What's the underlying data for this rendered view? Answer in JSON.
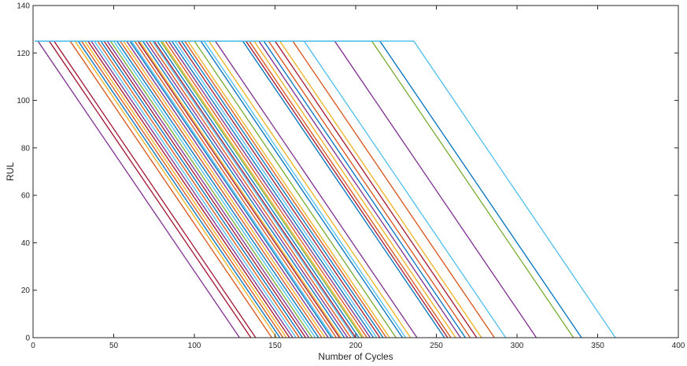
{
  "chart_data": {
    "type": "line",
    "title": "",
    "xlabel": "Number of Cycles",
    "ylabel": "RUL",
    "xlim": [
      0,
      400
    ],
    "ylim": [
      0,
      140
    ],
    "xticks": [
      0,
      50,
      100,
      150,
      200,
      250,
      300,
      350,
      400
    ],
    "yticks": [
      0,
      20,
      40,
      60,
      80,
      100,
      120,
      140
    ],
    "grid": false,
    "legend": "none",
    "rul_cap": 125,
    "series_note_colors": [
      "#0072BD",
      "#D95319",
      "#EDB120",
      "#7E2F8E",
      "#77AC30",
      "#4DBEEE",
      "#A2142F"
    ],
    "series": [
      {
        "color": "#7E2F8E",
        "x": [
          1,
          3,
          128
        ],
        "y": [
          125,
          125,
          0
        ]
      },
      {
        "color": "#A2142F",
        "x": [
          1,
          10,
          135
        ],
        "y": [
          125,
          125,
          0
        ]
      },
      {
        "color": "#A2142F",
        "x": [
          1,
          13,
          138
        ],
        "y": [
          125,
          125,
          0
        ]
      },
      {
        "color": "#D95319",
        "x": [
          1,
          23,
          148
        ],
        "y": [
          125,
          125,
          0
        ]
      },
      {
        "color": "#EDB120",
        "x": [
          1,
          26,
          151
        ],
        "y": [
          125,
          125,
          0
        ]
      },
      {
        "color": "#0072BD",
        "x": [
          1,
          28,
          153
        ],
        "y": [
          125,
          125,
          0
        ]
      },
      {
        "color": "#D95319",
        "x": [
          1,
          30,
          155
        ],
        "y": [
          125,
          125,
          0
        ]
      },
      {
        "color": "#EDB120",
        "x": [
          1,
          32,
          157
        ],
        "y": [
          125,
          125,
          0
        ]
      },
      {
        "color": "#A2142F",
        "x": [
          1,
          34,
          159
        ],
        "y": [
          125,
          125,
          0
        ]
      },
      {
        "color": "#7E2F8E",
        "x": [
          1,
          36,
          161
        ],
        "y": [
          125,
          125,
          0
        ]
      },
      {
        "color": "#4DBEEE",
        "x": [
          1,
          38,
          163
        ],
        "y": [
          125,
          125,
          0
        ]
      },
      {
        "color": "#D95319",
        "x": [
          1,
          40,
          165
        ],
        "y": [
          125,
          125,
          0
        ]
      },
      {
        "color": "#0072BD",
        "x": [
          1,
          42,
          167
        ],
        "y": [
          125,
          125,
          0
        ]
      },
      {
        "color": "#A2142F",
        "x": [
          1,
          44,
          169
        ],
        "y": [
          125,
          125,
          0
        ]
      },
      {
        "color": "#7E2F8E",
        "x": [
          1,
          46,
          171
        ],
        "y": [
          125,
          125,
          0
        ]
      },
      {
        "color": "#77AC30",
        "x": [
          1,
          48,
          173
        ],
        "y": [
          125,
          125,
          0
        ]
      },
      {
        "color": "#4DBEEE",
        "x": [
          1,
          50,
          175
        ],
        "y": [
          125,
          125,
          0
        ]
      },
      {
        "color": "#0072BD",
        "x": [
          1,
          52,
          177
        ],
        "y": [
          125,
          125,
          0
        ]
      },
      {
        "color": "#D95319",
        "x": [
          1,
          54,
          179
        ],
        "y": [
          125,
          125,
          0
        ]
      },
      {
        "color": "#EDB120",
        "x": [
          1,
          56,
          181
        ],
        "y": [
          125,
          125,
          0
        ]
      },
      {
        "color": "#7E2F8E",
        "x": [
          1,
          58,
          183
        ],
        "y": [
          125,
          125,
          0
        ]
      },
      {
        "color": "#0072BD",
        "x": [
          1,
          60,
          185
        ],
        "y": [
          125,
          125,
          0
        ]
      },
      {
        "color": "#4DBEEE",
        "x": [
          1,
          61,
          186
        ],
        "y": [
          125,
          125,
          0
        ]
      },
      {
        "color": "#D95319",
        "x": [
          1,
          63,
          188
        ],
        "y": [
          125,
          125,
          0
        ]
      },
      {
        "color": "#A2142F",
        "x": [
          1,
          65,
          190
        ],
        "y": [
          125,
          125,
          0
        ]
      },
      {
        "color": "#EDB120",
        "x": [
          1,
          66,
          191
        ],
        "y": [
          125,
          125,
          0
        ]
      },
      {
        "color": "#0072BD",
        "x": [
          1,
          68,
          193
        ],
        "y": [
          125,
          125,
          0
        ]
      },
      {
        "color": "#7E2F8E",
        "x": [
          1,
          70,
          195
        ],
        "y": [
          125,
          125,
          0
        ]
      },
      {
        "color": "#D95319",
        "x": [
          1,
          72,
          197
        ],
        "y": [
          125,
          125,
          0
        ]
      },
      {
        "color": "#4DBEEE",
        "x": [
          1,
          74,
          199
        ],
        "y": [
          125,
          125,
          0
        ]
      },
      {
        "color": "#A2142F",
        "x": [
          1,
          75,
          200
        ],
        "y": [
          125,
          125,
          0
        ]
      },
      {
        "color": "#0072BD",
        "x": [
          1,
          77,
          202
        ],
        "y": [
          125,
          125,
          0
        ]
      },
      {
        "color": "#77AC30",
        "x": [
          1,
          79,
          204
        ],
        "y": [
          125,
          125,
          0
        ]
      },
      {
        "color": "#EDB120",
        "x": [
          1,
          80,
          205
        ],
        "y": [
          125,
          125,
          0
        ]
      },
      {
        "color": "#D95319",
        "x": [
          1,
          82,
          207
        ],
        "y": [
          125,
          125,
          0
        ]
      },
      {
        "color": "#7E2F8E",
        "x": [
          1,
          84,
          209
        ],
        "y": [
          125,
          125,
          0
        ]
      },
      {
        "color": "#0072BD",
        "x": [
          1,
          86,
          211
        ],
        "y": [
          125,
          125,
          0
        ]
      },
      {
        "color": "#4DBEEE",
        "x": [
          1,
          88,
          213
        ],
        "y": [
          125,
          125,
          0
        ]
      },
      {
        "color": "#A2142F",
        "x": [
          1,
          90,
          215
        ],
        "y": [
          125,
          125,
          0
        ]
      },
      {
        "color": "#0072BD",
        "x": [
          1,
          92,
          217
        ],
        "y": [
          125,
          125,
          0
        ]
      },
      {
        "color": "#D95319",
        "x": [
          1,
          94,
          219
        ],
        "y": [
          125,
          125,
          0
        ]
      },
      {
        "color": "#EDB120",
        "x": [
          1,
          96,
          221
        ],
        "y": [
          125,
          125,
          0
        ]
      },
      {
        "color": "#77AC30",
        "x": [
          1,
          100,
          225
        ],
        "y": [
          125,
          125,
          0
        ]
      },
      {
        "color": "#0072BD",
        "x": [
          1,
          104,
          229
        ],
        "y": [
          125,
          125,
          0
        ]
      },
      {
        "color": "#4DBEEE",
        "x": [
          1,
          106,
          231
        ],
        "y": [
          125,
          125,
          0
        ]
      },
      {
        "color": "#EDB120",
        "x": [
          1,
          109,
          234
        ],
        "y": [
          125,
          125,
          0
        ]
      },
      {
        "color": "#7E2F8E",
        "x": [
          1,
          113,
          238
        ],
        "y": [
          125,
          125,
          0
        ]
      },
      {
        "color": "#0072BD",
        "x": [
          1,
          130,
          255
        ],
        "y": [
          125,
          125,
          0
        ]
      },
      {
        "color": "#A2142F",
        "x": [
          1,
          132,
          257
        ],
        "y": [
          125,
          125,
          0
        ]
      },
      {
        "color": "#D95319",
        "x": [
          1,
          134,
          259
        ],
        "y": [
          125,
          125,
          0
        ]
      },
      {
        "color": "#EDB120",
        "x": [
          1,
          137,
          262
        ],
        "y": [
          125,
          125,
          0
        ]
      },
      {
        "color": "#7E2F8E",
        "x": [
          1,
          140,
          265
        ],
        "y": [
          125,
          125,
          0
        ]
      },
      {
        "color": "#0072BD",
        "x": [
          1,
          143,
          268
        ],
        "y": [
          125,
          125,
          0
        ]
      },
      {
        "color": "#D95319",
        "x": [
          1,
          146,
          271
        ],
        "y": [
          125,
          125,
          0
        ]
      },
      {
        "color": "#A2142F",
        "x": [
          1,
          150,
          275
        ],
        "y": [
          125,
          125,
          0
        ]
      },
      {
        "color": "#EDB120",
        "x": [
          1,
          153,
          278
        ],
        "y": [
          125,
          125,
          0
        ]
      },
      {
        "color": "#D95319",
        "x": [
          1,
          161,
          286
        ],
        "y": [
          125,
          125,
          0
        ]
      },
      {
        "color": "#4DBEEE",
        "x": [
          1,
          168,
          293
        ],
        "y": [
          125,
          125,
          0
        ]
      },
      {
        "color": "#7E2F8E",
        "x": [
          1,
          187,
          312
        ],
        "y": [
          125,
          125,
          0
        ]
      },
      {
        "color": "#77AC30",
        "x": [
          1,
          210,
          335
        ],
        "y": [
          125,
          125,
          0
        ]
      },
      {
        "color": "#0072BD",
        "x": [
          1,
          215,
          340
        ],
        "y": [
          125,
          125,
          0
        ]
      },
      {
        "color": "#4DBEEE",
        "x": [
          1,
          236,
          361
        ],
        "y": [
          125,
          125,
          0
        ]
      }
    ]
  }
}
